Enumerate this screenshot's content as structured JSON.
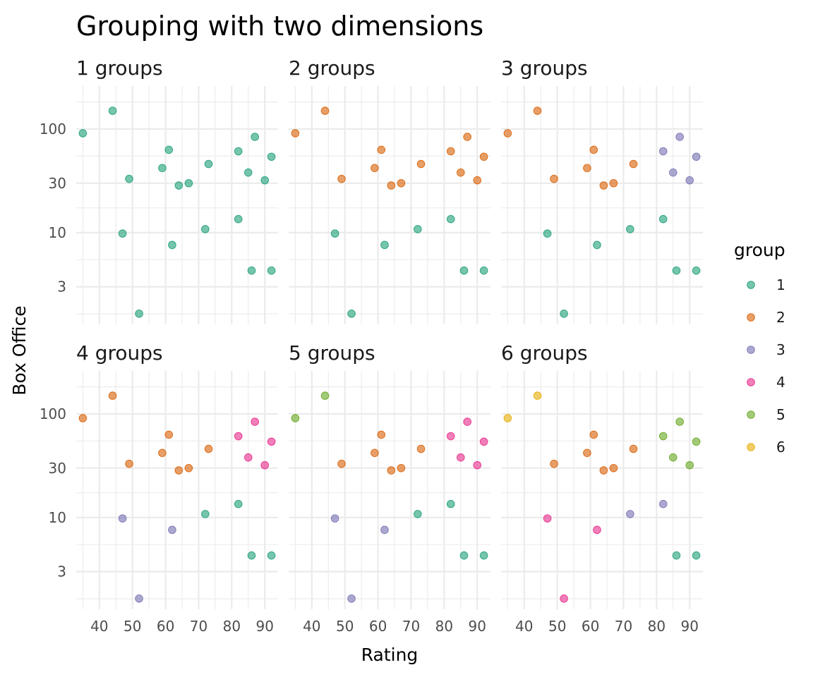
{
  "chart_data": {
    "type": "scatter",
    "title": "Grouping with two dimensions",
    "xlabel": "Rating",
    "ylabel": "Box Office",
    "x_scale": "linear",
    "y_scale": "log10",
    "xlim": [
      33,
      94
    ],
    "ylim": [
      1.3,
      260
    ],
    "x_ticks": [
      40,
      50,
      60,
      70,
      80,
      90
    ],
    "y_ticks": [
      3,
      10,
      30,
      100
    ],
    "grid": true,
    "legend": {
      "title": "group",
      "placement": "right",
      "entries": [
        "1",
        "2",
        "3",
        "4",
        "5",
        "6"
      ]
    },
    "colors": [
      "#1b9e77",
      "#d95f02",
      "#7570b3",
      "#e7298a",
      "#66a61e",
      "#e6ab02"
    ],
    "facet_suffix": " groups",
    "points": [
      {
        "x": 35,
        "y": 91
      },
      {
        "x": 44,
        "y": 150
      },
      {
        "x": 47,
        "y": 9.8
      },
      {
        "x": 49,
        "y": 33
      },
      {
        "x": 52,
        "y": 1.65
      },
      {
        "x": 59,
        "y": 42
      },
      {
        "x": 61,
        "y": 63
      },
      {
        "x": 62,
        "y": 7.6
      },
      {
        "x": 64,
        "y": 28.5
      },
      {
        "x": 67,
        "y": 30
      },
      {
        "x": 72,
        "y": 10.8
      },
      {
        "x": 73,
        "y": 46
      },
      {
        "x": 82,
        "y": 13.5
      },
      {
        "x": 82,
        "y": 61
      },
      {
        "x": 85,
        "y": 38
      },
      {
        "x": 86,
        "y": 4.3
      },
      {
        "x": 87,
        "y": 84
      },
      {
        "x": 90,
        "y": 32
      },
      {
        "x": 92,
        "y": 4.3
      },
      {
        "x": 92,
        "y": 54
      }
    ],
    "facets": [
      {
        "label": "1",
        "groups": [
          1,
          1,
          1,
          1,
          1,
          1,
          1,
          1,
          1,
          1,
          1,
          1,
          1,
          1,
          1,
          1,
          1,
          1,
          1,
          1
        ]
      },
      {
        "label": "2",
        "groups": [
          2,
          2,
          1,
          2,
          1,
          2,
          2,
          1,
          2,
          2,
          1,
          2,
          1,
          2,
          2,
          1,
          2,
          2,
          1,
          2
        ]
      },
      {
        "label": "3",
        "groups": [
          2,
          2,
          1,
          2,
          1,
          2,
          2,
          1,
          2,
          2,
          1,
          2,
          1,
          3,
          3,
          1,
          3,
          3,
          1,
          3
        ]
      },
      {
        "label": "4",
        "groups": [
          2,
          2,
          3,
          2,
          3,
          2,
          2,
          3,
          2,
          2,
          1,
          2,
          1,
          4,
          4,
          1,
          4,
          4,
          1,
          4
        ]
      },
      {
        "label": "5",
        "groups": [
          5,
          5,
          3,
          2,
          3,
          2,
          2,
          3,
          2,
          2,
          1,
          2,
          1,
          4,
          4,
          1,
          4,
          4,
          1,
          4
        ]
      },
      {
        "label": "6",
        "groups": [
          6,
          6,
          4,
          2,
          4,
          2,
          2,
          4,
          2,
          2,
          3,
          2,
          3,
          5,
          5,
          1,
          5,
          5,
          1,
          5
        ]
      }
    ]
  }
}
